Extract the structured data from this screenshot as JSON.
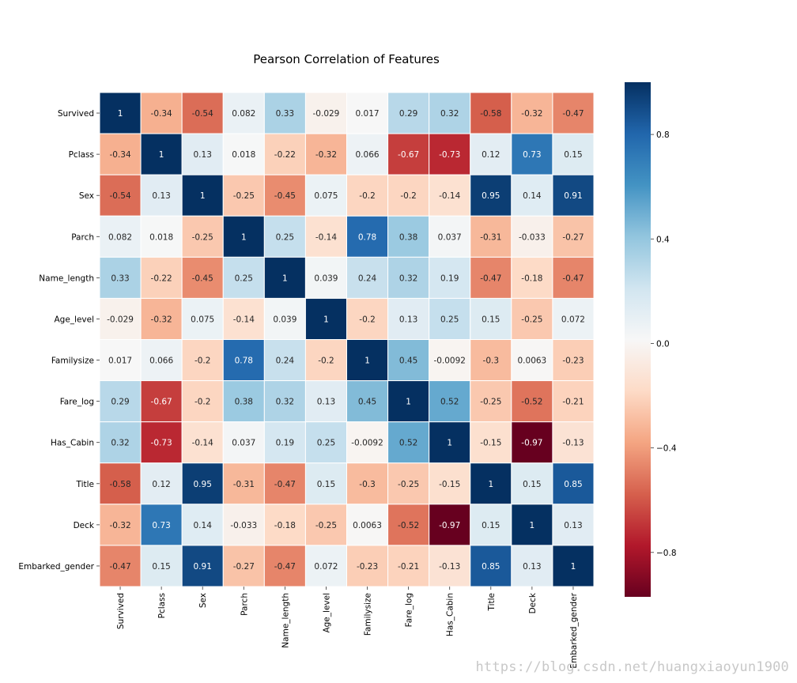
{
  "chart_data": {
    "type": "heatmap",
    "title": "Pearson Correlation of Features",
    "colormap": "RdBu",
    "vmin": -0.97,
    "vmax": 1,
    "labels": [
      "Survived",
      "Pclass",
      "Sex",
      "Parch",
      "Name_length",
      "Age_level",
      "Familysize",
      "Fare_log",
      "Has_Cabin",
      "Title",
      "Deck",
      "Embarked_gender"
    ],
    "values": [
      [
        1,
        -0.34,
        -0.54,
        0.082,
        0.33,
        -0.029,
        0.017,
        0.29,
        0.32,
        -0.58,
        -0.32,
        -0.47
      ],
      [
        -0.34,
        1,
        0.13,
        0.018,
        -0.22,
        -0.32,
        0.066,
        -0.67,
        -0.73,
        0.12,
        0.73,
        0.15
      ],
      [
        -0.54,
        0.13,
        1,
        -0.25,
        -0.45,
        0.075,
        -0.2,
        -0.2,
        -0.14,
        0.95,
        0.14,
        0.91
      ],
      [
        0.082,
        0.018,
        -0.25,
        1,
        0.25,
        -0.14,
        0.78,
        0.38,
        0.037,
        -0.31,
        -0.033,
        -0.27
      ],
      [
        0.33,
        -0.22,
        -0.45,
        0.25,
        1,
        0.039,
        0.24,
        0.32,
        0.19,
        -0.47,
        -0.18,
        -0.47
      ],
      [
        -0.029,
        -0.32,
        0.075,
        -0.14,
        0.039,
        1,
        -0.2,
        0.13,
        0.25,
        0.15,
        -0.25,
        0.072
      ],
      [
        0.017,
        0.066,
        -0.2,
        0.78,
        0.24,
        -0.2,
        1,
        0.45,
        -0.0092,
        -0.3,
        0.0063,
        -0.23
      ],
      [
        0.29,
        -0.67,
        -0.2,
        0.38,
        0.32,
        0.13,
        0.45,
        1,
        0.52,
        -0.25,
        -0.52,
        -0.21
      ],
      [
        0.32,
        -0.73,
        -0.14,
        0.037,
        0.19,
        0.25,
        -0.0092,
        0.52,
        1,
        -0.15,
        -0.97,
        -0.13
      ],
      [
        -0.58,
        0.12,
        0.95,
        -0.31,
        -0.47,
        0.15,
        -0.3,
        -0.25,
        -0.15,
        1,
        0.15,
        0.85
      ],
      [
        -0.32,
        0.73,
        0.14,
        -0.033,
        -0.18,
        -0.25,
        0.0063,
        -0.52,
        -0.97,
        0.15,
        1,
        0.13
      ],
      [
        -0.47,
        0.15,
        0.91,
        -0.27,
        -0.47,
        0.072,
        -0.23,
        -0.21,
        -0.13,
        0.85,
        0.13,
        1
      ]
    ],
    "colorbar": {
      "ticks": [
        0.8,
        0.4,
        0.0,
        -0.4,
        -0.8
      ],
      "tick_labels": [
        "0.8",
        "0.4",
        "0.0",
        "−0.4",
        "−0.8"
      ]
    }
  },
  "watermark": "https://blog.csdn.net/huangxiaoyun1900"
}
